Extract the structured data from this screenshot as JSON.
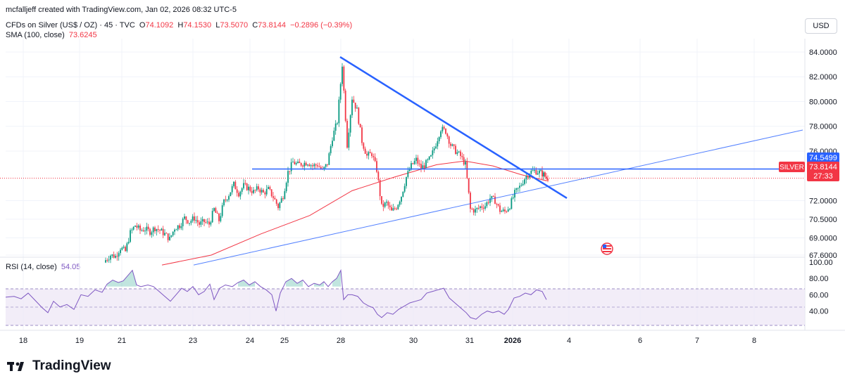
{
  "header": {
    "attribution": "mcfalljeff created with TradingView.com, Jan 02, 2026 08:32 UTC-5"
  },
  "currency_button": "USD",
  "legend": {
    "symbol": "CFDs on Silver (US$ / OZ) · 45 · TVC",
    "o_label": "O",
    "o": "74.1092",
    "h_label": "H",
    "h": "74.1530",
    "l_label": "L",
    "l": "73.5070",
    "c_label": "C",
    "c": "73.8144",
    "change": "−0.2896 (−0.39%)",
    "sma_label": "SMA (100, close)",
    "sma_value": "73.6245",
    "rsi_label": "RSI (14, close)",
    "rsi_value": "54.05"
  },
  "brand": {
    "name": "TradingView"
  },
  "colors": {
    "up": "#089981",
    "down": "#f23645",
    "sma": "#f23645",
    "trend": "#2962ff",
    "rsi": "#7e57c2",
    "grid": "#f0f3fa",
    "rsi_band": "#ede7f6"
  },
  "price_labels": {
    "resistance": "74.5499",
    "symbol_tag": "SILVER",
    "last": "73.8144",
    "countdown": "27:33"
  },
  "chart_data": {
    "type": "candlestick",
    "title": "CFDs on Silver (US$ / OZ) · 45 · TVC",
    "y_axis": {
      "range": [
        66.8,
        85.0
      ],
      "ticks": [
        "84.0000",
        "82.0000",
        "80.0000",
        "78.0000",
        "76.0000",
        "74.5499",
        "72.0000",
        "70.5000",
        "69.0000",
        "67.6000"
      ]
    },
    "x_axis": {
      "ticks": [
        "18",
        "19",
        "21",
        "23",
        "24",
        "25",
        "28",
        "30",
        "31",
        "2026",
        "4",
        "6",
        "7",
        "8"
      ],
      "domain": [
        0,
        1140
      ]
    },
    "ohlc_path": [
      [
        150,
        67.2
      ],
      [
        157,
        67.6
      ],
      [
        164,
        67.5
      ],
      [
        171,
        68.2
      ],
      [
        178,
        67.9
      ],
      [
        185,
        69.4
      ],
      [
        192,
        70.0
      ],
      [
        199,
        69.6
      ],
      [
        206,
        69.7
      ],
      [
        213,
        69.5
      ],
      [
        220,
        69.8
      ],
      [
        227,
        69.6
      ],
      [
        234,
        69.3
      ],
      [
        241,
        68.9
      ],
      [
        248,
        69.8
      ],
      [
        255,
        70.0
      ],
      [
        262,
        70.6
      ],
      [
        269,
        70.3
      ],
      [
        276,
        70.6
      ],
      [
        283,
        70.1
      ],
      [
        290,
        70.3
      ],
      [
        297,
        70.1
      ],
      [
        304,
        71.3
      ],
      [
        311,
        70.4
      ],
      [
        318,
        71.9
      ],
      [
        325,
        72.5
      ],
      [
        332,
        73.3
      ],
      [
        339,
        72.6
      ],
      [
        346,
        73.2
      ],
      [
        353,
        73.0
      ],
      [
        360,
        72.7
      ],
      [
        367,
        73.0
      ],
      [
        374,
        72.6
      ],
      [
        381,
        72.9
      ],
      [
        388,
        72.3
      ],
      [
        395,
        71.5
      ],
      [
        402,
        72.4
      ],
      [
        409,
        74.3
      ],
      [
        416,
        75.1
      ],
      [
        423,
        74.9
      ],
      [
        430,
        75.0
      ],
      [
        437,
        75.1
      ],
      [
        444,
        74.8
      ],
      [
        451,
        74.9
      ],
      [
        458,
        74.4
      ],
      [
        465,
        75.0
      ],
      [
        472,
        77.1
      ],
      [
        479,
        78.4
      ],
      [
        486,
        83.0
      ],
      [
        493,
        76.5
      ],
      [
        500,
        80.3
      ],
      [
        507,
        79.3
      ],
      [
        514,
        76.8
      ],
      [
        521,
        75.6
      ],
      [
        528,
        75.8
      ],
      [
        535,
        74.5
      ],
      [
        542,
        71.5
      ],
      [
        549,
        71.8
      ],
      [
        556,
        71.1
      ],
      [
        563,
        71.5
      ],
      [
        570,
        72.4
      ],
      [
        577,
        73.9
      ],
      [
        584,
        74.8
      ],
      [
        591,
        75.3
      ],
      [
        598,
        74.6
      ],
      [
        605,
        75.0
      ],
      [
        612,
        75.5
      ],
      [
        619,
        76.6
      ],
      [
        626,
        77.8
      ],
      [
        633,
        77.6
      ],
      [
        640,
        76.5
      ],
      [
        647,
        76.0
      ],
      [
        654,
        75.6
      ],
      [
        661,
        74.9
      ],
      [
        668,
        71.3
      ],
      [
        675,
        71.2
      ],
      [
        682,
        71.5
      ],
      [
        689,
        71.6
      ],
      [
        696,
        72.2
      ],
      [
        703,
        72.0
      ],
      [
        710,
        71.2
      ],
      [
        717,
        71.1
      ],
      [
        724,
        71.6
      ],
      [
        731,
        72.6
      ],
      [
        738,
        73.1
      ],
      [
        745,
        73.8
      ],
      [
        752,
        74.3
      ],
      [
        759,
        74.4
      ],
      [
        766,
        74.3
      ],
      [
        772,
        74.1
      ],
      [
        776,
        73.81
      ]
    ],
    "series": [
      {
        "name": "SMA (100, close)",
        "type": "line",
        "color": "#f23645",
        "points": [
          [
            230,
            66.8
          ],
          [
            300,
            67.6
          ],
          [
            370,
            69.3
          ],
          [
            440,
            70.8
          ],
          [
            500,
            72.8
          ],
          [
            560,
            73.9
          ],
          [
            620,
            74.9
          ],
          [
            660,
            75.2
          ],
          [
            700,
            74.8
          ],
          [
            740,
            74.1
          ],
          [
            776,
            73.6
          ]
        ]
      },
      {
        "name": "Descending trendline",
        "type": "line",
        "color": "#2962ff",
        "points": [
          [
            483,
            83.6
          ],
          [
            805,
            72.2
          ]
        ]
      },
      {
        "name": "Ascending trendline",
        "type": "line",
        "color": "#2962ff",
        "points": [
          [
            275,
            66.8
          ],
          [
            1140,
            77.7
          ]
        ]
      },
      {
        "name": "Resistance",
        "type": "hline",
        "value": 74.5499,
        "x_from": 358,
        "x_to": 1140
      },
      {
        "name": "Last price",
        "type": "hline",
        "value": 73.8144,
        "style": "dotted"
      }
    ],
    "rsi": {
      "label": "RSI (14, close)",
      "value": 54.05,
      "y_ticks": [
        "100.00",
        "80.00",
        "60.00",
        "40.00"
      ],
      "bands": {
        "upper": 70,
        "middle": 50,
        "lower": 30
      },
      "path": [
        [
          8,
          57
        ],
        [
          20,
          58
        ],
        [
          30,
          55
        ],
        [
          40,
          62
        ],
        [
          50,
          53
        ],
        [
          60,
          44
        ],
        [
          68,
          38
        ],
        [
          76,
          52
        ],
        [
          85,
          45
        ],
        [
          95,
          48
        ],
        [
          105,
          42
        ],
        [
          115,
          60
        ],
        [
          125,
          58
        ],
        [
          135,
          66
        ],
        [
          145,
          63
        ],
        [
          152,
          73
        ],
        [
          160,
          78
        ],
        [
          168,
          75
        ],
        [
          175,
          77
        ],
        [
          182,
          84
        ],
        [
          188,
          90
        ],
        [
          194,
          72
        ],
        [
          200,
          70
        ],
        [
          210,
          72
        ],
        [
          218,
          70
        ],
        [
          226,
          64
        ],
        [
          234,
          58
        ],
        [
          242,
          52
        ],
        [
          250,
          60
        ],
        [
          258,
          68
        ],
        [
          266,
          64
        ],
        [
          274,
          70
        ],
        [
          282,
          60
        ],
        [
          290,
          64
        ],
        [
          298,
          73
        ],
        [
          304,
          54
        ],
        [
          312,
          68
        ],
        [
          320,
          72
        ],
        [
          330,
          70
        ],
        [
          338,
          75
        ],
        [
          346,
          78
        ],
        [
          354,
          72
        ],
        [
          362,
          76
        ],
        [
          370,
          70
        ],
        [
          378,
          66
        ],
        [
          386,
          60
        ],
        [
          392,
          40
        ],
        [
          398,
          62
        ],
        [
          406,
          76
        ],
        [
          414,
          80
        ],
        [
          422,
          74
        ],
        [
          430,
          78
        ],
        [
          438,
          70
        ],
        [
          446,
          74
        ],
        [
          454,
          72
        ],
        [
          460,
          76
        ],
        [
          466,
          70
        ],
        [
          472,
          76
        ],
        [
          478,
          80
        ],
        [
          484,
          90
        ],
        [
          488,
          54
        ],
        [
          494,
          60
        ],
        [
          500,
          60
        ],
        [
          508,
          58
        ],
        [
          516,
          50
        ],
        [
          524,
          46
        ],
        [
          530,
          44
        ],
        [
          536,
          36
        ],
        [
          542,
          32
        ],
        [
          550,
          38
        ],
        [
          558,
          36
        ],
        [
          566,
          42
        ],
        [
          574,
          46
        ],
        [
          582,
          50
        ],
        [
          590,
          52
        ],
        [
          598,
          54
        ],
        [
          606,
          62
        ],
        [
          614,
          64
        ],
        [
          622,
          66
        ],
        [
          630,
          68
        ],
        [
          638,
          56
        ],
        [
          646,
          50
        ],
        [
          654,
          44
        ],
        [
          662,
          38
        ],
        [
          668,
          32
        ],
        [
          676,
          30
        ],
        [
          684,
          36
        ],
        [
          692,
          40
        ],
        [
          700,
          38
        ],
        [
          708,
          40
        ],
        [
          716,
          36
        ],
        [
          722,
          42
        ],
        [
          730,
          56
        ],
        [
          738,
          58
        ],
        [
          746,
          62
        ],
        [
          754,
          60
        ],
        [
          762,
          66
        ],
        [
          770,
          64
        ],
        [
          776,
          54
        ]
      ]
    }
  }
}
